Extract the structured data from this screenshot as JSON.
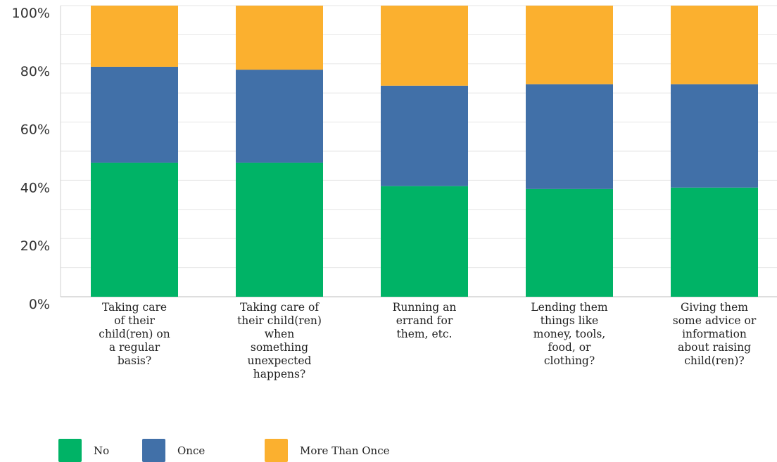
{
  "chart_data": {
    "type": "bar",
    "stacked": true,
    "categories": [
      "Taking care\nof their\nchild(ren) on\na regular\nbasis?",
      "Taking care of\ntheir child(ren)\nwhen\nsomething\nunexpected\nhappens?",
      "Running an\nerrand for\nthem, etc.",
      "Lending them\nthings like\nmoney, tools,\nfood, or\nclothing?",
      "Giving them\nsome advice or\ninformation\nabout raising\nchild(ren)?"
    ],
    "series": [
      {
        "name": "No",
        "color": "#00b366",
        "values": [
          46,
          46,
          38,
          37,
          37.5
        ]
      },
      {
        "name": "Once",
        "color": "#4170a8",
        "values": [
          33,
          32,
          34.5,
          36,
          35.5
        ]
      },
      {
        "name": "More Than Once",
        "color": "#fbb02f",
        "values": [
          21,
          22,
          27.5,
          27,
          27
        ]
      }
    ],
    "ylim": [
      0,
      100
    ],
    "yticks": [
      "0%",
      "20%",
      "40%",
      "60%",
      "80%",
      "100%"
    ],
    "grid": true,
    "legend": "bottom-left"
  }
}
